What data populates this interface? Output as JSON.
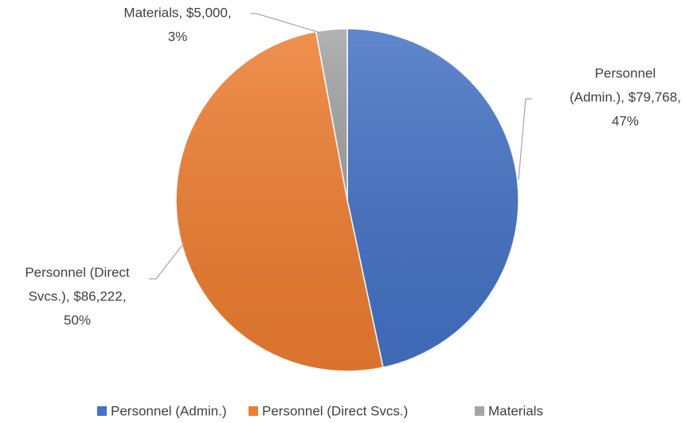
{
  "chart_data": {
    "type": "pie",
    "categories": [
      "Personnel (Admin.)",
      "Personnel (Direct Svcs.)",
      "Materials"
    ],
    "values": [
      79768,
      86222,
      5000
    ],
    "colors": [
      "#4472c4",
      "#ed7d31",
      "#a5a5a5"
    ],
    "data_labels": [
      [
        "Personnel",
        "(Admin.), $79,768,",
        "47%"
      ],
      [
        "Personnel (Direct",
        "Svcs.), $86,222,",
        "50%"
      ],
      [
        "Materials, $5,000,",
        "3%"
      ]
    ],
    "legend": "bottom"
  }
}
